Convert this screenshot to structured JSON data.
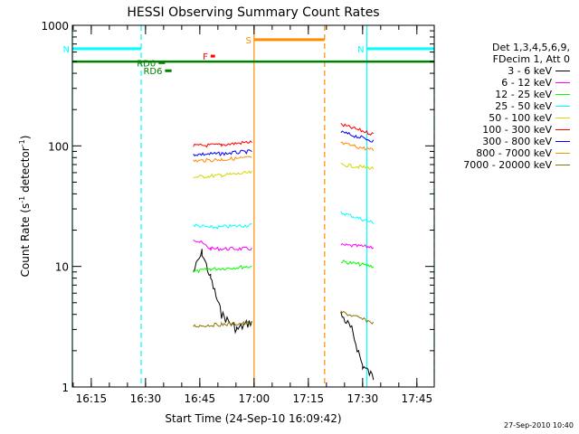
{
  "chart_data": {
    "type": "line",
    "title": "HESSI Observing Summary Count Rates",
    "xlabel": "Start Time (24-Sep-10 16:09:42)",
    "ylabel_main": "Count Rate (s",
    "ylabel_sup1": "-1",
    "ylabel_mid": " detector",
    "ylabel_sup2": "-1",
    "ylabel_end": ")",
    "y_scale": "log",
    "ylim": [
      1,
      1000
    ],
    "xlim": [
      16.163,
      17.83
    ],
    "y_ticks": [
      "1",
      "10",
      "100",
      "1000"
    ],
    "x_ticks": [
      {
        "v": 16.25,
        "label": "16:15"
      },
      {
        "v": 16.5,
        "label": "16:30"
      },
      {
        "v": 16.75,
        "label": "16:45"
      },
      {
        "v": 17.0,
        "label": "17:00"
      },
      {
        "v": 17.25,
        "label": "17:15"
      },
      {
        "v": 17.5,
        "label": "17:30"
      },
      {
        "v": 17.75,
        "label": "17:45"
      }
    ],
    "legend_header": [
      "Det 1,3,4,5,6,9,",
      "FDecim 1, Att 0"
    ],
    "series": [
      {
        "name": "3 - 6 keV",
        "color": "#000000",
        "seg1": [
          [
            16.72,
            9
          ],
          [
            16.76,
            13
          ],
          [
            16.8,
            8
          ],
          [
            16.85,
            4
          ],
          [
            16.92,
            3
          ],
          [
            16.99,
            3.5
          ]
        ],
        "seg2": [
          [
            17.4,
            4
          ],
          [
            17.45,
            3
          ],
          [
            17.5,
            1.5
          ],
          [
            17.55,
            1.2
          ]
        ]
      },
      {
        "name": "6 - 12 keV",
        "color": "#ff00ff",
        "seg1": [
          [
            16.72,
            17
          ],
          [
            16.75,
            16
          ],
          [
            16.8,
            14
          ],
          [
            16.99,
            14
          ]
        ],
        "seg2": [
          [
            17.4,
            15
          ],
          [
            17.55,
            14.5
          ]
        ]
      },
      {
        "name": "12 - 25 keV",
        "color": "#00ff00",
        "seg1": [
          [
            16.72,
            9
          ],
          [
            16.8,
            9.5
          ],
          [
            16.99,
            10
          ]
        ],
        "seg2": [
          [
            17.4,
            11
          ],
          [
            17.55,
            10
          ]
        ]
      },
      {
        "name": "25 - 50 keV",
        "color": "#00ffff",
        "seg1": [
          [
            16.72,
            22
          ],
          [
            16.8,
            21
          ],
          [
            16.99,
            22
          ]
        ],
        "seg2": [
          [
            17.4,
            28
          ],
          [
            17.55,
            23
          ]
        ]
      },
      {
        "name": "50 - 100 keV",
        "color": "#d6d600",
        "seg1": [
          [
            16.72,
            55
          ],
          [
            16.85,
            57
          ],
          [
            16.99,
            60
          ]
        ],
        "seg2": [
          [
            17.4,
            70
          ],
          [
            17.55,
            65
          ]
        ]
      },
      {
        "name": "100 - 300 keV",
        "color": "#ff0000",
        "seg1": [
          [
            16.72,
            100
          ],
          [
            16.85,
            102
          ],
          [
            16.99,
            108
          ]
        ],
        "seg2": [
          [
            17.4,
            150
          ],
          [
            17.55,
            125
          ]
        ]
      },
      {
        "name": "300 - 800 keV",
        "color": "#0000ff",
        "seg1": [
          [
            16.72,
            85
          ],
          [
            16.85,
            86
          ],
          [
            16.99,
            90
          ]
        ],
        "seg2": [
          [
            17.4,
            130
          ],
          [
            17.55,
            110
          ]
        ]
      },
      {
        "name": "800 - 7000 keV",
        "color": "#ff8c00",
        "seg1": [
          [
            16.72,
            75
          ],
          [
            16.85,
            77
          ],
          [
            16.99,
            80
          ]
        ],
        "seg2": [
          [
            17.4,
            105
          ],
          [
            17.55,
            92
          ]
        ]
      },
      {
        "name": "7000 - 20000 keV",
        "color": "#8b7500",
        "seg1": [
          [
            16.72,
            3.2
          ],
          [
            16.85,
            3.3
          ],
          [
            16.99,
            3.4
          ]
        ],
        "seg2": [
          [
            17.4,
            4.2
          ],
          [
            17.55,
            3.4
          ]
        ]
      }
    ],
    "annotations": [
      {
        "label": "N",
        "color": "#00ffff",
        "bar": [
          16.163,
          16.48
        ],
        "y": 640
      },
      {
        "label": "N",
        "color": "#00ffff",
        "bar": [
          17.52,
          17.83
        ],
        "y": 640
      },
      {
        "label": "S",
        "color": "#ff8c00",
        "bar": [
          17.0,
          17.325
        ],
        "y": 760
      },
      {
        "label": "F",
        "color": "#ff0000",
        "bar": [
          16.8,
          16.82
        ],
        "y": 555
      },
      {
        "label": "RD6",
        "color": "#008000",
        "bar": [
          16.59,
          16.62
        ],
        "y": 420
      },
      {
        "label": "RD0",
        "color": "#008000",
        "bar": [
          16.56,
          16.59
        ],
        "y": 490
      }
    ],
    "ghost_band": {
      "label": "",
      "color": "#008000",
      "y": 500
    },
    "vlines": [
      {
        "x": 16.163,
        "color": "#00ffff",
        "dash": false
      },
      {
        "x": 16.48,
        "color": "#00ffff",
        "dash": true
      },
      {
        "x": 17.0,
        "color": "#ff8c00",
        "dash": false
      },
      {
        "x": 17.325,
        "color": "#ff8c00",
        "dash": true
      },
      {
        "x": 17.52,
        "color": "#00ffff",
        "dash": false
      },
      {
        "x": 17.83,
        "color": "#00ffff",
        "dash": true
      }
    ]
  },
  "timestamp": "27-Sep-2010 10:40"
}
